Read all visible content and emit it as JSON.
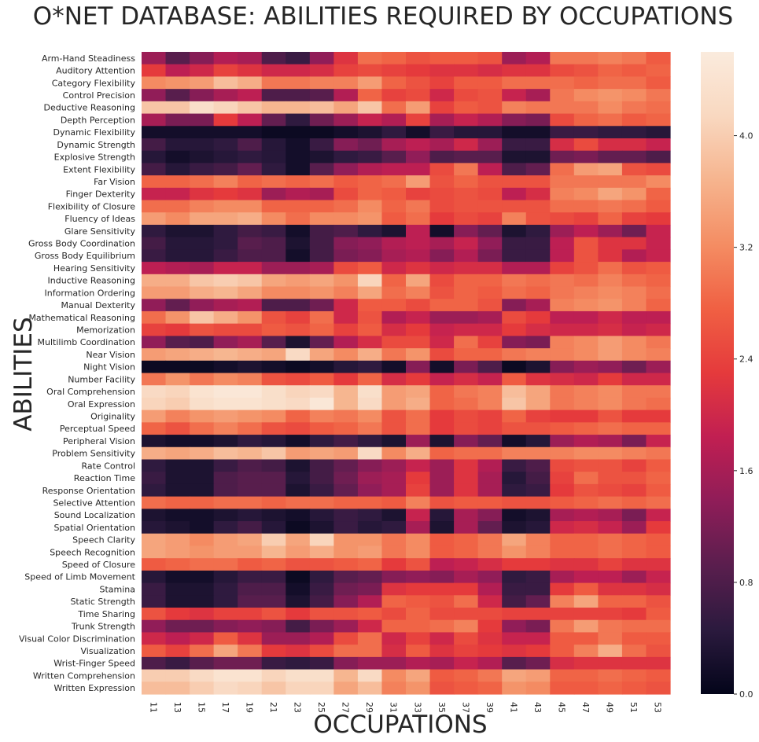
{
  "chart_data": {
    "type": "heatmap",
    "title": "O*NET DATABASE: ABILITIES REQUIRED BY OCCUPATIONS",
    "xlabel": "OCCUPATIONS",
    "ylabel": "ABILITIES",
    "x": [
      "11",
      "13",
      "15",
      "17",
      "19",
      "21",
      "23",
      "25",
      "27",
      "29",
      "31",
      "33",
      "35",
      "37",
      "39",
      "41",
      "43",
      "45",
      "47",
      "49",
      "51",
      "53"
    ],
    "y": [
      "Arm-Hand Steadiness",
      "Auditory Attention",
      "Category Flexibility",
      "Control Precision",
      "Deductive Reasoning",
      "Depth Perception",
      "Dynamic Flexibility",
      "Dynamic Strength",
      "Explosive Strength",
      "Extent Flexibility",
      "Far Vision",
      "Finger Dexterity",
      "Flexibility of Closure",
      "Fluency of Ideas",
      "Glare Sensitivity",
      "Gross Body Coordination",
      "Gross Body Equilibrium",
      "Hearing Sensitivity",
      "Inductive Reasoning",
      "Information Ordering",
      "Manual Dexterity",
      "Mathematical Reasoning",
      "Memorization",
      "Multilimb Coordination",
      "Near Vision",
      "Night Vision",
      "Number Facility",
      "Oral Comprehension",
      "Oral Expression",
      "Originality",
      "Perceptual Speed",
      "Peripheral Vision",
      "Problem Sensitivity",
      "Rate Control",
      "Reaction Time",
      "Response Orientation",
      "Selective Attention",
      "Sound Localization",
      "Spatial Orientation",
      "Speech Clarity",
      "Speech Recognition",
      "Speed of Closure",
      "Speed of Limb Movement",
      "Stamina",
      "Static Strength",
      "Time Sharing",
      "Trunk Strength",
      "Visual Color Discrimination",
      "Visualization",
      "Wrist-Finger Speed",
      "Written Comprehension",
      "Written Expression"
    ],
    "values": [
      [
        1.5,
        0.9,
        1.3,
        1.7,
        1.6,
        0.8,
        0.6,
        1.4,
        2.2,
        2.9,
        2.8,
        2.6,
        2.7,
        2.7,
        2.6,
        1.5,
        1.7,
        3.0,
        3.0,
        3.1,
        3.0,
        2.7
      ],
      [
        2.3,
        1.8,
        2.0,
        2.4,
        2.2,
        2.0,
        2.0,
        2.1,
        2.4,
        2.5,
        2.4,
        2.3,
        2.2,
        2.2,
        2.1,
        2.2,
        2.2,
        2.5,
        2.6,
        2.8,
        2.7,
        2.8
      ],
      [
        3.2,
        3.3,
        3.4,
        3.8,
        3.6,
        3.0,
        3.0,
        3.1,
        3.1,
        3.4,
        2.8,
        2.6,
        2.4,
        2.7,
        2.7,
        2.9,
        2.9,
        2.9,
        2.8,
        2.9,
        2.9,
        2.7
      ],
      [
        1.4,
        0.9,
        1.3,
        1.6,
        1.8,
        0.8,
        0.8,
        0.9,
        1.7,
        2.8,
        2.4,
        2.5,
        2.0,
        2.5,
        2.6,
        1.9,
        1.6,
        3.0,
        3.2,
        3.3,
        3.2,
        3.0
      ],
      [
        3.9,
        3.9,
        4.3,
        4.1,
        3.9,
        3.7,
        3.7,
        3.8,
        3.5,
        3.9,
        2.9,
        3.4,
        2.4,
        2.7,
        2.6,
        3.1,
        3.0,
        3.0,
        3.0,
        3.2,
        3.0,
        2.9
      ],
      [
        1.6,
        1.2,
        1.2,
        2.3,
        1.8,
        1.0,
        0.5,
        1.1,
        1.5,
        1.9,
        1.7,
        2.4,
        1.6,
        1.9,
        1.7,
        1.3,
        1.2,
        2.5,
        2.8,
        2.9,
        2.7,
        2.8
      ],
      [
        0.2,
        0.2,
        0.2,
        0.2,
        0.2,
        0.1,
        0.1,
        0.1,
        0.2,
        0.3,
        0.5,
        0.2,
        0.6,
        0.4,
        0.4,
        0.2,
        0.2,
        0.6,
        0.6,
        0.5,
        0.5,
        0.4
      ],
      [
        0.7,
        0.4,
        0.4,
        0.5,
        0.8,
        0.4,
        0.2,
        0.6,
        1.3,
        1.1,
        1.6,
        1.8,
        1.6,
        2.0,
        1.5,
        0.6,
        0.6,
        2.1,
        2.5,
        2.1,
        2.1,
        1.9
      ],
      [
        0.4,
        0.2,
        0.3,
        0.4,
        0.5,
        0.4,
        0.2,
        0.3,
        0.5,
        0.6,
        0.9,
        1.4,
        0.8,
        0.9,
        0.9,
        0.3,
        0.3,
        1.1,
        1.2,
        1.0,
        1.0,
        0.8
      ],
      [
        0.7,
        0.4,
        0.6,
        0.7,
        1.0,
        0.5,
        0.2,
        0.9,
        1.4,
        1.7,
        1.8,
        1.8,
        2.5,
        3.0,
        1.8,
        0.8,
        1.0,
        2.9,
        3.4,
        3.5,
        2.6,
        2.5
      ],
      [
        2.8,
        2.8,
        2.9,
        3.1,
        2.8,
        2.9,
        2.8,
        2.9,
        2.7,
        2.8,
        2.9,
        3.4,
        2.6,
        2.8,
        2.6,
        2.6,
        2.6,
        3.0,
        3.0,
        3.0,
        3.0,
        3.2
      ],
      [
        1.9,
        1.9,
        2.2,
        2.3,
        2.2,
        1.5,
        1.7,
        1.6,
        2.5,
        2.8,
        2.7,
        2.4,
        2.5,
        2.6,
        2.5,
        1.8,
        2.1,
        3.1,
        3.2,
        3.5,
        3.3,
        2.8
      ],
      [
        2.9,
        2.9,
        3.1,
        3.2,
        3.2,
        2.8,
        2.8,
        2.8,
        2.9,
        3.2,
        2.8,
        3.0,
        2.5,
        2.6,
        2.6,
        2.6,
        2.6,
        2.9,
        2.9,
        3.0,
        2.9,
        2.7
      ],
      [
        3.4,
        3.2,
        3.5,
        3.5,
        3.6,
        3.2,
        2.9,
        3.2,
        3.2,
        3.3,
        2.7,
        2.9,
        2.3,
        2.5,
        2.4,
        3.1,
        2.6,
        2.5,
        2.4,
        2.8,
        2.4,
        2.3
      ],
      [
        0.5,
        0.3,
        0.3,
        0.5,
        0.7,
        0.6,
        0.2,
        0.7,
        0.8,
        0.5,
        0.3,
        1.8,
        0.2,
        1.3,
        1.0,
        0.3,
        0.5,
        1.5,
        1.8,
        1.5,
        1.1,
        1.9
      ],
      [
        0.7,
        0.4,
        0.4,
        0.5,
        0.9,
        0.8,
        0.3,
        0.7,
        1.3,
        1.4,
        1.7,
        1.8,
        1.6,
        1.9,
        1.4,
        0.6,
        0.6,
        1.8,
        2.6,
        2.2,
        2.2,
        1.9
      ],
      [
        0.6,
        0.4,
        0.4,
        0.6,
        0.8,
        0.8,
        0.2,
        0.7,
        1.2,
        1.3,
        1.6,
        1.7,
        1.3,
        1.7,
        1.2,
        0.6,
        0.6,
        1.8,
        2.6,
        2.2,
        1.7,
        1.9
      ],
      [
        1.8,
        1.7,
        1.6,
        1.9,
        1.9,
        1.5,
        1.5,
        1.6,
        2.5,
        2.7,
        2.0,
        2.2,
        2.0,
        2.1,
        2.1,
        1.7,
        1.7,
        2.4,
        2.6,
        2.9,
        2.6,
        2.7
      ],
      [
        3.6,
        3.6,
        3.9,
        4.0,
        3.9,
        3.5,
        3.4,
        3.5,
        3.3,
        4.1,
        2.8,
        3.5,
        2.5,
        2.8,
        2.8,
        3.0,
        2.9,
        3.0,
        2.9,
        3.1,
        2.9,
        2.8
      ],
      [
        3.4,
        3.4,
        3.6,
        3.7,
        3.5,
        3.2,
        3.2,
        3.3,
        3.1,
        3.5,
        2.9,
        3.1,
        2.6,
        2.8,
        2.7,
        2.9,
        2.8,
        3.0,
        3.1,
        3.2,
        3.1,
        2.9
      ],
      [
        1.4,
        1.0,
        1.4,
        1.6,
        1.7,
        0.8,
        0.8,
        1.1,
        2.0,
        2.7,
        2.7,
        2.5,
        2.8,
        2.8,
        2.6,
        1.3,
        1.6,
        3.1,
        3.2,
        3.3,
        3.1,
        2.8
      ],
      [
        2.9,
        3.3,
        3.9,
        3.6,
        3.3,
        2.6,
        2.4,
        2.9,
        2.0,
        2.6,
        1.7,
        1.9,
        1.5,
        1.5,
        1.6,
        2.5,
        2.3,
        1.8,
        1.8,
        2.0,
        1.8,
        1.8
      ],
      [
        2.4,
        2.3,
        2.6,
        2.5,
        2.5,
        2.7,
        2.6,
        2.8,
        2.4,
        2.7,
        2.1,
        2.3,
        1.9,
        2.0,
        2.0,
        2.3,
        2.1,
        2.0,
        2.0,
        2.1,
        1.9,
        2.0
      ],
      [
        1.4,
        0.9,
        0.8,
        1.4,
        1.6,
        0.9,
        0.3,
        1.0,
        1.7,
        2.1,
        2.5,
        2.5,
        2.0,
        2.9,
        2.4,
        1.3,
        1.2,
        3.1,
        3.2,
        3.4,
        3.2,
        3.0
      ],
      [
        3.4,
        3.5,
        3.6,
        3.7,
        3.6,
        3.5,
        4.2,
        3.5,
        3.2,
        3.6,
        3.0,
        3.3,
        2.5,
        2.8,
        2.8,
        3.0,
        3.1,
        3.1,
        3.2,
        3.4,
        3.2,
        3.1
      ],
      [
        0.1,
        0.1,
        0.1,
        0.2,
        0.3,
        0.2,
        0.1,
        0.2,
        0.4,
        0.5,
        0.2,
        1.3,
        0.2,
        1.2,
        0.8,
        0.1,
        0.3,
        1.3,
        1.5,
        1.4,
        1.1,
        1.5
      ],
      [
        3.0,
        3.3,
        3.0,
        3.2,
        3.1,
        2.6,
        2.5,
        2.7,
        2.3,
        2.8,
        2.1,
        2.3,
        1.9,
        2.1,
        1.9,
        2.7,
        2.2,
        2.1,
        2.0,
        2.3,
        2.0,
        2.0
      ],
      [
        4.2,
        4.1,
        4.4,
        4.5,
        4.5,
        4.3,
        4.1,
        4.2,
        3.7,
        4.3,
        3.4,
        3.5,
        2.8,
        3.0,
        3.1,
        3.8,
        3.5,
        3.0,
        3.1,
        3.2,
        3.0,
        3.0
      ],
      [
        4.1,
        4.0,
        4.3,
        4.4,
        4.4,
        4.3,
        4.2,
        4.5,
        3.7,
        4.2,
        3.4,
        3.6,
        2.8,
        2.9,
        3.1,
        3.9,
        3.5,
        3.0,
        3.1,
        3.2,
        3.0,
        2.9
      ],
      [
        3.4,
        3.1,
        3.3,
        3.4,
        3.3,
        3.2,
        2.8,
        3.1,
        3.0,
        3.2,
        2.6,
        2.9,
        2.3,
        2.5,
        2.4,
        2.8,
        2.4,
        2.3,
        2.3,
        2.6,
        2.3,
        2.3
      ],
      [
        2.8,
        2.6,
        2.9,
        3.1,
        2.9,
        2.6,
        2.5,
        2.7,
        2.8,
        3.0,
        2.6,
        2.9,
        2.3,
        2.5,
        2.4,
        2.6,
        2.6,
        2.7,
        2.8,
        2.9,
        2.8,
        2.8
      ],
      [
        0.3,
        0.2,
        0.2,
        0.3,
        0.5,
        0.4,
        0.2,
        0.5,
        0.7,
        0.5,
        0.3,
        1.5,
        0.3,
        1.3,
        1.0,
        0.2,
        0.4,
        1.5,
        1.7,
        1.6,
        1.2,
        1.9
      ],
      [
        3.6,
        3.5,
        3.6,
        3.8,
        3.7,
        3.9,
        3.4,
        3.5,
        3.4,
        4.2,
        3.2,
        3.6,
        2.8,
        2.9,
        2.9,
        3.1,
        3.1,
        3.1,
        3.2,
        3.2,
        3.1,
        3.0
      ],
      [
        0.5,
        0.3,
        0.3,
        0.6,
        0.8,
        0.7,
        0.3,
        0.7,
        1.0,
        1.3,
        1.5,
        1.9,
        1.5,
        2.2,
        1.7,
        0.6,
        0.8,
        2.5,
        2.6,
        2.6,
        2.4,
        2.7
      ],
      [
        0.6,
        0.3,
        0.3,
        0.8,
        0.9,
        0.9,
        0.4,
        0.7,
        1.1,
        1.5,
        1.6,
        2.3,
        1.5,
        2.2,
        1.6,
        0.4,
        0.7,
        2.4,
        2.9,
        2.6,
        2.6,
        2.8
      ],
      [
        0.5,
        0.3,
        0.3,
        0.8,
        0.9,
        0.9,
        0.3,
        0.6,
        1.0,
        1.4,
        1.6,
        2.4,
        1.5,
        2.2,
        1.6,
        0.5,
        0.6,
        2.3,
        2.6,
        2.5,
        2.4,
        2.7
      ],
      [
        2.9,
        2.8,
        2.8,
        2.9,
        2.9,
        2.8,
        2.9,
        2.9,
        2.8,
        2.8,
        2.7,
        3.1,
        2.6,
        2.7,
        2.7,
        2.6,
        2.6,
        2.7,
        2.8,
        2.9,
        2.8,
        2.9
      ],
      [
        0.3,
        0.2,
        0.2,
        0.3,
        0.4,
        0.3,
        0.2,
        0.4,
        0.6,
        0.5,
        0.3,
        1.9,
        0.4,
        1.6,
        1.3,
        0.2,
        0.3,
        1.6,
        1.7,
        1.6,
        1.2,
        1.9
      ],
      [
        0.4,
        0.3,
        0.2,
        0.5,
        0.7,
        0.4,
        0.1,
        0.3,
        0.6,
        0.4,
        0.5,
        1.6,
        0.3,
        1.6,
        1.0,
        0.3,
        0.4,
        2.0,
        2.1,
        1.9,
        1.5,
        2.3
      ],
      [
        3.5,
        3.4,
        3.2,
        3.4,
        3.5,
        4.0,
        3.5,
        4.1,
        3.3,
        3.3,
        3.0,
        3.2,
        2.7,
        2.8,
        3.0,
        3.5,
        3.1,
        2.8,
        2.8,
        2.9,
        2.8,
        2.7
      ],
      [
        3.5,
        3.4,
        3.3,
        3.4,
        3.4,
        3.7,
        3.4,
        3.6,
        3.3,
        3.4,
        3.0,
        3.2,
        2.7,
        2.8,
        3.0,
        3.3,
        3.1,
        2.8,
        2.8,
        2.9,
        2.8,
        2.7
      ],
      [
        2.7,
        2.8,
        2.9,
        2.9,
        2.7,
        2.8,
        2.6,
        2.6,
        2.7,
        2.8,
        2.3,
        2.6,
        1.8,
        1.9,
        2.1,
        2.3,
        2.3,
        2.2,
        2.2,
        2.4,
        2.2,
        2.2
      ],
      [
        0.4,
        0.2,
        0.2,
        0.4,
        0.6,
        0.6,
        0.1,
        0.5,
        0.9,
        1.0,
        1.3,
        1.4,
        1.3,
        1.6,
        1.4,
        0.5,
        0.6,
        1.6,
        1.8,
        1.8,
        1.5,
        1.9
      ],
      [
        0.6,
        0.3,
        0.3,
        0.5,
        0.8,
        0.8,
        0.2,
        0.6,
        1.1,
        1.2,
        2.2,
        2.3,
        2.3,
        2.3,
        1.7,
        0.6,
        0.6,
        2.3,
        2.7,
        2.2,
        2.2,
        2.1
      ],
      [
        0.6,
        0.3,
        0.3,
        0.5,
        0.9,
        0.9,
        0.3,
        0.7,
        1.3,
        1.7,
        2.8,
        2.7,
        2.6,
        2.9,
        2.0,
        0.7,
        1.0,
        3.1,
        3.5,
        2.8,
        2.8,
        2.6
      ],
      [
        2.6,
        2.3,
        2.2,
        2.4,
        2.4,
        2.6,
        2.3,
        2.6,
        2.6,
        2.7,
        2.5,
        2.8,
        2.5,
        2.5,
        2.5,
        2.4,
        2.4,
        2.4,
        2.4,
        2.4,
        2.3,
        2.7
      ],
      [
        1.4,
        1.1,
        1.1,
        1.3,
        1.4,
        1.3,
        0.7,
        1.2,
        1.5,
        2.0,
        2.8,
        2.8,
        2.9,
        3.1,
        2.3,
        1.4,
        1.2,
        3.0,
        3.4,
        3.0,
        2.9,
        2.9
      ],
      [
        2.0,
        1.8,
        2.0,
        2.7,
        2.2,
        1.5,
        1.5,
        1.7,
        2.5,
        2.9,
        2.0,
        2.4,
        2.0,
        2.5,
        2.2,
        1.9,
        1.9,
        2.7,
        2.7,
        3.0,
        2.7,
        2.7
      ],
      [
        2.7,
        2.4,
        2.9,
        3.5,
        3.0,
        2.3,
        2.2,
        2.5,
        2.9,
        2.9,
        2.1,
        2.7,
        2.2,
        2.4,
        2.3,
        2.2,
        2.3,
        2.7,
        3.1,
        3.6,
        2.9,
        2.6
      ],
      [
        0.8,
        0.6,
        0.9,
        1.1,
        1.1,
        0.6,
        0.5,
        0.6,
        1.3,
        1.5,
        1.5,
        1.7,
        1.6,
        1.9,
        1.7,
        0.9,
        1.1,
        2.1,
        2.2,
        2.2,
        2.2,
        2.2
      ],
      [
        4.0,
        4.0,
        4.2,
        4.4,
        4.4,
        4.1,
        4.3,
        4.3,
        3.7,
        4.2,
        3.2,
        3.5,
        2.7,
        2.8,
        3.0,
        3.5,
        3.4,
        2.8,
        2.8,
        2.9,
        2.8,
        2.7
      ],
      [
        3.8,
        3.8,
        4.0,
        4.2,
        4.1,
        3.9,
        4.1,
        4.1,
        3.5,
        3.8,
        3.1,
        3.3,
        2.6,
        2.7,
        2.8,
        3.3,
        3.2,
        2.7,
        2.7,
        2.8,
        2.7,
        2.6
      ]
    ],
    "vmin": 0.0,
    "vmax": 4.6,
    "colorbar_ticks": [
      "0.0",
      "0.8",
      "1.6",
      "2.4",
      "3.2",
      "4.0"
    ],
    "colormap_stops": [
      "#03051a",
      "#2b1a3e",
      "#5a1e4e",
      "#8f1d58",
      "#c11f52",
      "#e53a3c",
      "#f06043",
      "#f48d63",
      "#f6b48e",
      "#f9d8c0",
      "#faebdd"
    ]
  }
}
